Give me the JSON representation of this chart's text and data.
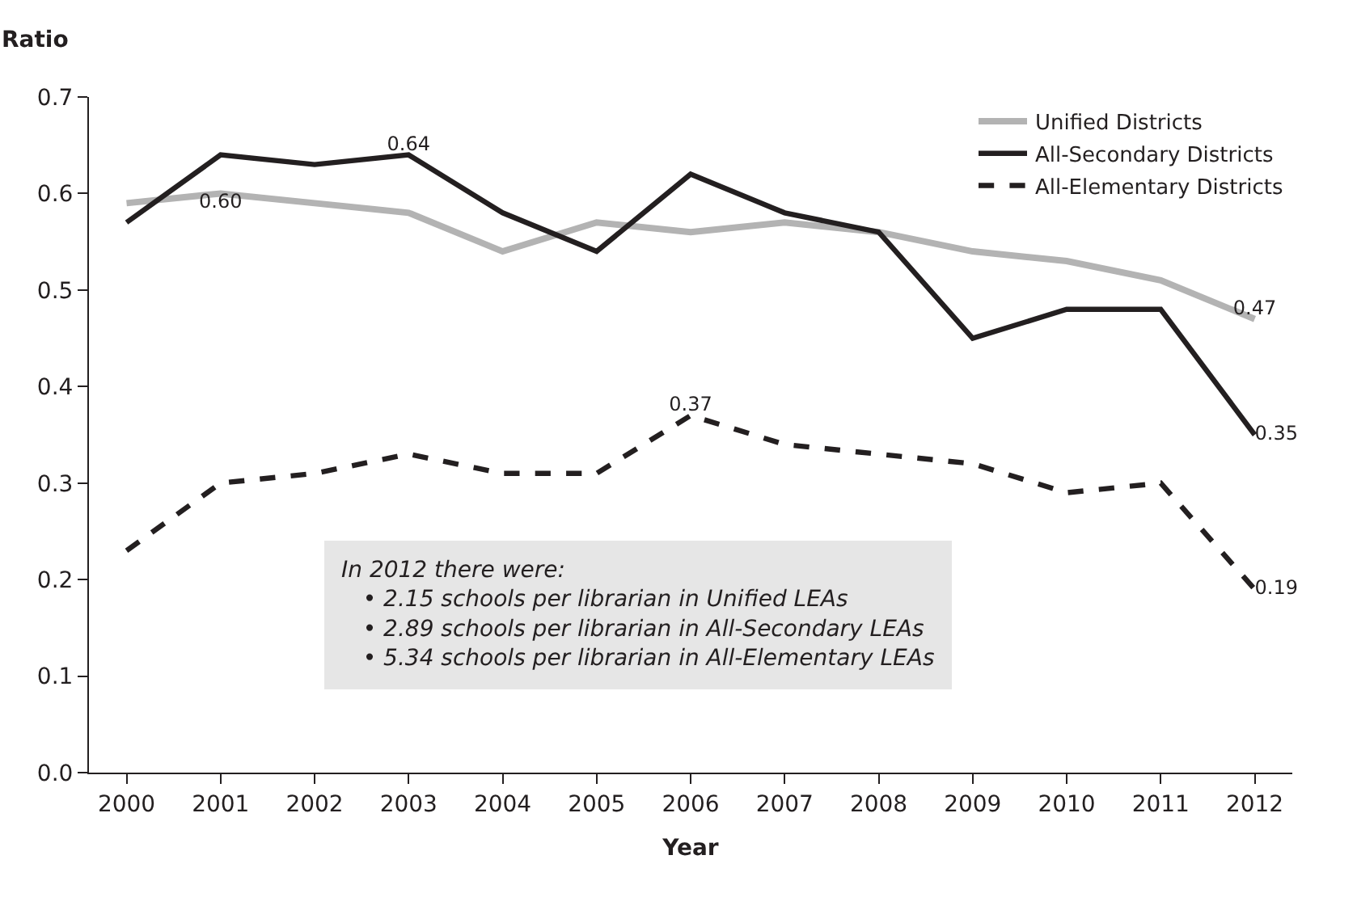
{
  "chart_data": {
    "type": "line",
    "xlabel": "Year",
    "ylabel": "Ratio",
    "categories": [
      "2000",
      "2001",
      "2002",
      "2003",
      "2004",
      "2005",
      "2006",
      "2007",
      "2008",
      "2009",
      "2010",
      "2011",
      "2012"
    ],
    "series": [
      {
        "name": "Unified Districts",
        "color": "#b3b3b3",
        "line_style": "solid",
        "values": [
          0.59,
          0.6,
          0.59,
          0.58,
          0.54,
          0.57,
          0.56,
          0.57,
          0.56,
          0.54,
          0.53,
          0.51,
          0.47
        ],
        "value_labels": [
          null,
          "0.60",
          null,
          null,
          null,
          null,
          null,
          null,
          null,
          null,
          null,
          null,
          "0.47"
        ]
      },
      {
        "name": "All-Secondary Districts",
        "color": "#231f20",
        "line_style": "solid",
        "values": [
          0.57,
          0.64,
          0.63,
          0.64,
          0.58,
          0.54,
          0.62,
          0.58,
          0.56,
          0.45,
          0.48,
          0.48,
          0.35
        ],
        "value_labels": [
          null,
          null,
          null,
          "0.64",
          null,
          null,
          null,
          null,
          null,
          null,
          null,
          null,
          "0.35"
        ]
      },
      {
        "name": "All-Elementary Districts",
        "color": "#231f20",
        "line_style": "dashed",
        "values": [
          0.23,
          0.3,
          0.31,
          0.33,
          0.31,
          0.31,
          0.37,
          0.34,
          0.33,
          0.32,
          0.29,
          0.3,
          0.19
        ],
        "value_labels": [
          null,
          null,
          null,
          null,
          null,
          null,
          "0.37",
          null,
          null,
          null,
          null,
          null,
          "0.19"
        ]
      }
    ],
    "ylim": [
      0,
      0.7
    ],
    "yticks": [
      "0.0",
      0.1,
      0.2,
      0.3,
      0.4,
      0.5,
      0.6,
      0.7
    ],
    "grid": false,
    "legend": "top right",
    "marker": "none",
    "annotations": [
      "In 2012 there were:",
      "• 2.15 schools per librarian in Unified LEAs",
      "• 2.89 schools per librarian in All-Secondary LEAs",
      "• 5.34 schools per librarian in All-Elementary LEAs"
    ]
  }
}
